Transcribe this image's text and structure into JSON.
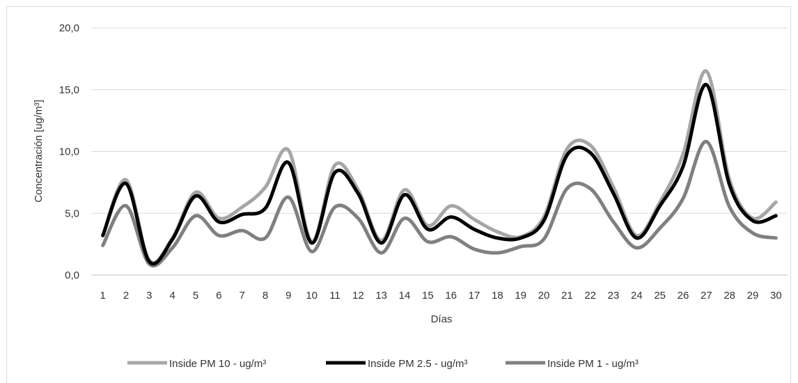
{
  "chart_data": {
    "type": "line",
    "title": "",
    "xlabel": "Días",
    "ylabel": "Concentración [ug/m³]",
    "ylim": [
      0,
      20
    ],
    "yticks": [
      "0,0",
      "5,0",
      "10,0",
      "15,0",
      "20,0"
    ],
    "categories": [
      "1",
      "2",
      "3",
      "4",
      "5",
      "6",
      "7",
      "8",
      "9",
      "10",
      "11",
      "12",
      "13",
      "14",
      "15",
      "16",
      "17",
      "18",
      "19",
      "20",
      "21",
      "22",
      "23",
      "24",
      "25",
      "26",
      "27",
      "28",
      "29",
      "30"
    ],
    "grid": "horizontal",
    "legend": "bottom",
    "series": [
      {
        "name": "Inside PM 10 - ug/m³",
        "color": "#a6a6a6",
        "width": 5,
        "values": [
          3.2,
          7.7,
          1.2,
          3.0,
          6.7,
          4.6,
          5.5,
          7.1,
          10.1,
          2.7,
          8.9,
          6.9,
          2.8,
          6.9,
          4.0,
          5.6,
          4.5,
          3.5,
          3.1,
          4.7,
          10.2,
          10.5,
          7.1,
          3.2,
          5.9,
          9.8,
          16.5,
          7.7,
          4.6,
          5.9
        ]
      },
      {
        "name": "Inside PM 2.5 - ug/m³",
        "color": "#000000",
        "width": 5,
        "values": [
          3.2,
          7.4,
          1.1,
          2.9,
          6.4,
          4.3,
          4.9,
          5.4,
          9.1,
          2.6,
          8.3,
          6.6,
          2.6,
          6.5,
          3.7,
          4.7,
          3.7,
          3.0,
          3.0,
          4.4,
          9.7,
          9.9,
          6.6,
          3.0,
          5.6,
          8.8,
          15.4,
          7.3,
          4.4,
          4.8
        ]
      },
      {
        "name": "Inside PM 1 - ug/m³",
        "color": "#808080",
        "width": 5,
        "values": [
          2.4,
          5.6,
          0.9,
          2.2,
          4.8,
          3.2,
          3.6,
          3.0,
          6.3,
          1.9,
          5.5,
          4.6,
          1.8,
          4.6,
          2.7,
          3.1,
          2.1,
          1.8,
          2.3,
          2.9,
          7.0,
          7.0,
          4.3,
          2.2,
          3.8,
          6.2,
          10.8,
          5.5,
          3.4,
          3.0
        ]
      }
    ]
  }
}
